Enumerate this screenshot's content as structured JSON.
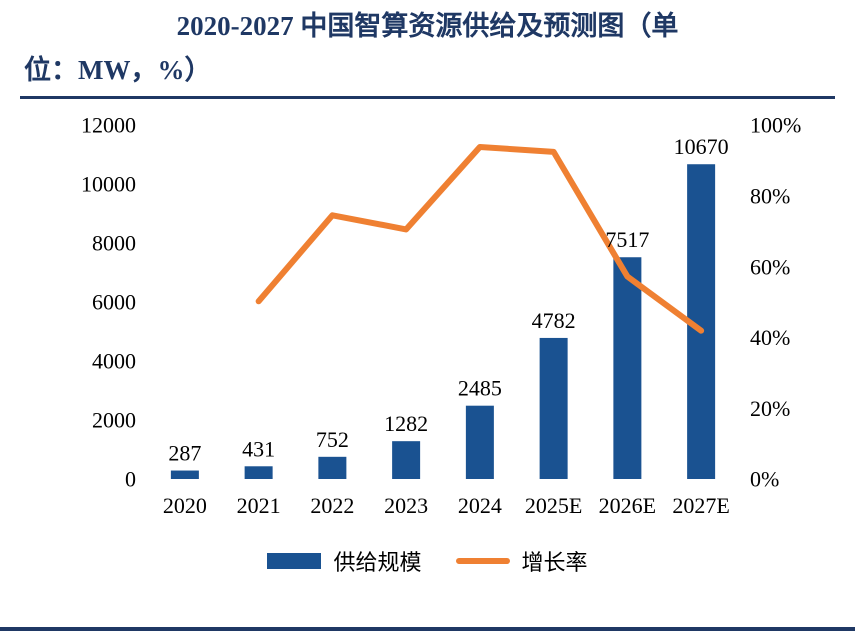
{
  "title": {
    "line1": "2020-2027 中国智算资源供给及预测图（单",
    "line2": "位：MW，%）"
  },
  "colors": {
    "navy": "#1F3864",
    "bar": "#1A5291",
    "line": "#EF8032"
  },
  "chart_data": {
    "type": "bar",
    "combo": "bar+line",
    "title": "2020-2027 中国智算资源供给及预测图（单位：MW，%）",
    "categories": [
      "2020",
      "2021",
      "2022",
      "2023",
      "2024",
      "2025E",
      "2026E",
      "2027E"
    ],
    "series": [
      {
        "name": "供给规模",
        "kind": "bar",
        "axis": "left",
        "color": "#1A5291",
        "values": [
          287,
          431,
          752,
          1282,
          2485,
          4782,
          7517,
          10670
        ]
      },
      {
        "name": "增长率",
        "kind": "line",
        "axis": "right",
        "color": "#EF8032",
        "values": [
          null,
          50.2,
          74.5,
          70.5,
          93.8,
          92.4,
          57.2,
          41.9
        ]
      }
    ],
    "left_axis": {
      "min": 0,
      "max": 12000,
      "step": 2000,
      "ticks": [
        "0",
        "2000",
        "4000",
        "6000",
        "8000",
        "10000",
        "12000"
      ]
    },
    "right_axis": {
      "min": 0,
      "max": 100,
      "step": 20,
      "ticks": [
        "0%",
        "20%",
        "40%",
        "60%",
        "80%",
        "100%"
      ]
    },
    "legend_position": "bottom",
    "grid": false
  }
}
